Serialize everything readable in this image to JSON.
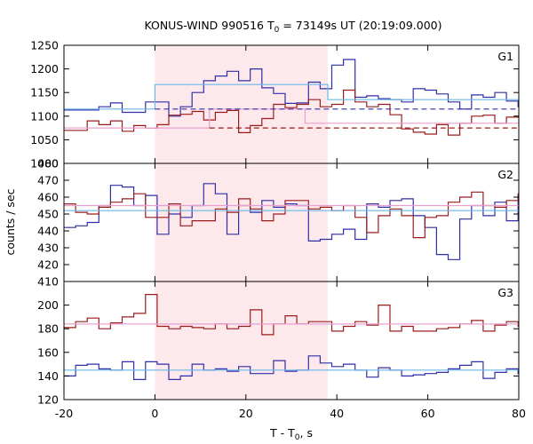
{
  "chart_data": {
    "type": "line",
    "title": "KONUS-WIND 990516 T",
    "title_sub": "0",
    "title_rest": " = 73149s UT (20:19:09.000)",
    "xlabel": "T - T",
    "xlabel_sub": "0",
    "xlabel_rest": ", s",
    "ylabel": "counts / sec",
    "xlim": [
      -20,
      80
    ],
    "x_ticks": [
      "-20",
      "0",
      "20",
      "40",
      "60",
      "80"
    ],
    "x_tick_values": [
      -20,
      0,
      20,
      40,
      60,
      80
    ],
    "highlight_interval": [
      0,
      38
    ],
    "colors": {
      "blue": "#2f2fa8",
      "red": "#9b1c1c",
      "cyan": "#6ab8e8",
      "pink": "#e8a0cf",
      "shade": "#fde8ec"
    },
    "bin_start": -20,
    "bin_width": 2.56,
    "panels": [
      {
        "label": "G1",
        "ylim": [
          1000,
          1250
        ],
        "y_tick_values": [
          1000,
          1050,
          1100,
          1150,
          1200,
          1250
        ],
        "y_ticks": [
          "1000",
          "1050",
          "1100",
          "1150",
          "1200",
          "1250"
        ],
        "series": [
          {
            "color": "blue",
            "values": [
              1113,
              1113,
              1113,
              1120,
              1128,
              1108,
              1108,
              1130,
              1130,
              1100,
              1120,
              1150,
              1175,
              1185,
              1195,
              1175,
              1200,
              1160,
              1148,
              1127,
              1128,
              1172,
              1158,
              1208,
              1220,
              1140,
              1143,
              1137,
              1135,
              1130,
              1158,
              1155,
              1147,
              1130,
              1115,
              1145,
              1140,
              1150,
              1132,
              1120
            ]
          },
          {
            "color": "red",
            "values": [
              1070,
              1070,
              1090,
              1082,
              1090,
              1068,
              1080,
              1075,
              1082,
              1102,
              1104,
              1110,
              1092,
              1108,
              1112,
              1065,
              1080,
              1095,
              1125,
              1118,
              1125,
              1135,
              1120,
              1125,
              1155,
              1130,
              1120,
              1125,
              1103,
              1073,
              1066,
              1062,
              1082,
              1060,
              1085,
              1100,
              1102,
              1085,
              1098,
              1100
            ]
          }
        ],
        "fits": [
          {
            "color": "cyan",
            "style": "solid",
            "points": [
              [
                -20,
                1115
              ],
              [
                0,
                1115
              ],
              [
                0,
                1167
              ],
              [
                38,
                1167
              ],
              [
                38,
                1135
              ],
              [
                80,
                1135
              ]
            ]
          },
          {
            "color": "pink",
            "style": "solid",
            "points": [
              [
                -20,
                1075
              ],
              [
                12,
                1075
              ],
              [
                12,
                1115
              ],
              [
                33,
                1115
              ],
              [
                33,
                1085
              ],
              [
                80,
                1085
              ]
            ]
          },
          {
            "color": "blue",
            "style": "dashed",
            "points": [
              [
                0,
                1115
              ],
              [
                80,
                1115
              ]
            ]
          },
          {
            "color": "red",
            "style": "dashed",
            "points": [
              [
                12,
                1075
              ],
              [
                80,
                1075
              ]
            ]
          }
        ]
      },
      {
        "label": "G2",
        "ylim": [
          410,
          480
        ],
        "y_tick_values": [
          410,
          420,
          430,
          440,
          450,
          460,
          470,
          480
        ],
        "y_ticks": [
          "410",
          "420",
          "430",
          "440",
          "450",
          "460",
          "470",
          "480"
        ],
        "series": [
          {
            "color": "blue",
            "values": [
              442,
              443,
              445,
              455,
              467,
              466,
              455,
              461,
              438,
              450,
              448,
              455,
              468,
              462,
              438,
              455,
              451,
              458,
              454,
              456,
              455,
              434,
              435,
              438,
              441,
              435,
              456,
              454,
              458,
              459,
              449,
              442,
              426,
              423,
              447,
              455,
              449,
              457,
              446,
              461
            ]
          },
          {
            "color": "red",
            "values": [
              456,
              451,
              450,
              454,
              457,
              459,
              462,
              448,
              448,
              456,
              443,
              446,
              446,
              453,
              451,
              459,
              453,
              446,
              450,
              458,
              458,
              453,
              454,
              452,
              455,
              448,
              439,
              449,
              453,
              449,
              436,
              448,
              449,
              457,
              460,
              463,
              455,
              454,
              458,
              462
            ]
          }
        ],
        "fits": [
          {
            "color": "cyan",
            "style": "solid",
            "points": [
              [
                -20,
                452
              ],
              [
                80,
                452
              ]
            ]
          },
          {
            "color": "pink",
            "style": "solid",
            "points": [
              [
                -20,
                455
              ],
              [
                80,
                455
              ]
            ]
          }
        ]
      },
      {
        "label": "G3",
        "ylim": [
          120,
          220
        ],
        "y_tick_values": [
          120,
          140,
          160,
          180,
          200
        ],
        "y_ticks": [
          "120",
          "140",
          "160",
          "180",
          "200"
        ],
        "series": [
          {
            "color": "blue",
            "values": [
              140,
              149,
              150,
              146,
              145,
              152,
              137,
              152,
              150,
              137,
              140,
              150,
              145,
              146,
              144,
              148,
              142,
              142,
              153,
              144,
              145,
              157,
              151,
              148,
              150,
              145,
              139,
              147,
              145,
              140,
              141,
              142,
              143,
              146,
              149,
              152,
              138,
              143,
              146,
              142
            ]
          },
          {
            "color": "red",
            "values": [
              181,
              186,
              189,
              180,
              185,
              190,
              193,
              209,
              182,
              180,
              182,
              181,
              180,
              184,
              180,
              182,
              196,
              175,
              184,
              191,
              184,
              186,
              186,
              178,
              182,
              186,
              183,
              200,
              178,
              182,
              178,
              178,
              180,
              181,
              184,
              187,
              178,
              183,
              186,
              182
            ]
          }
        ],
        "fits": [
          {
            "color": "cyan",
            "style": "solid",
            "points": [
              [
                -20,
                145
              ],
              [
                80,
                145
              ]
            ]
          },
          {
            "color": "pink",
            "style": "solid",
            "points": [
              [
                -20,
                184
              ],
              [
                80,
                184
              ]
            ]
          }
        ]
      }
    ]
  }
}
